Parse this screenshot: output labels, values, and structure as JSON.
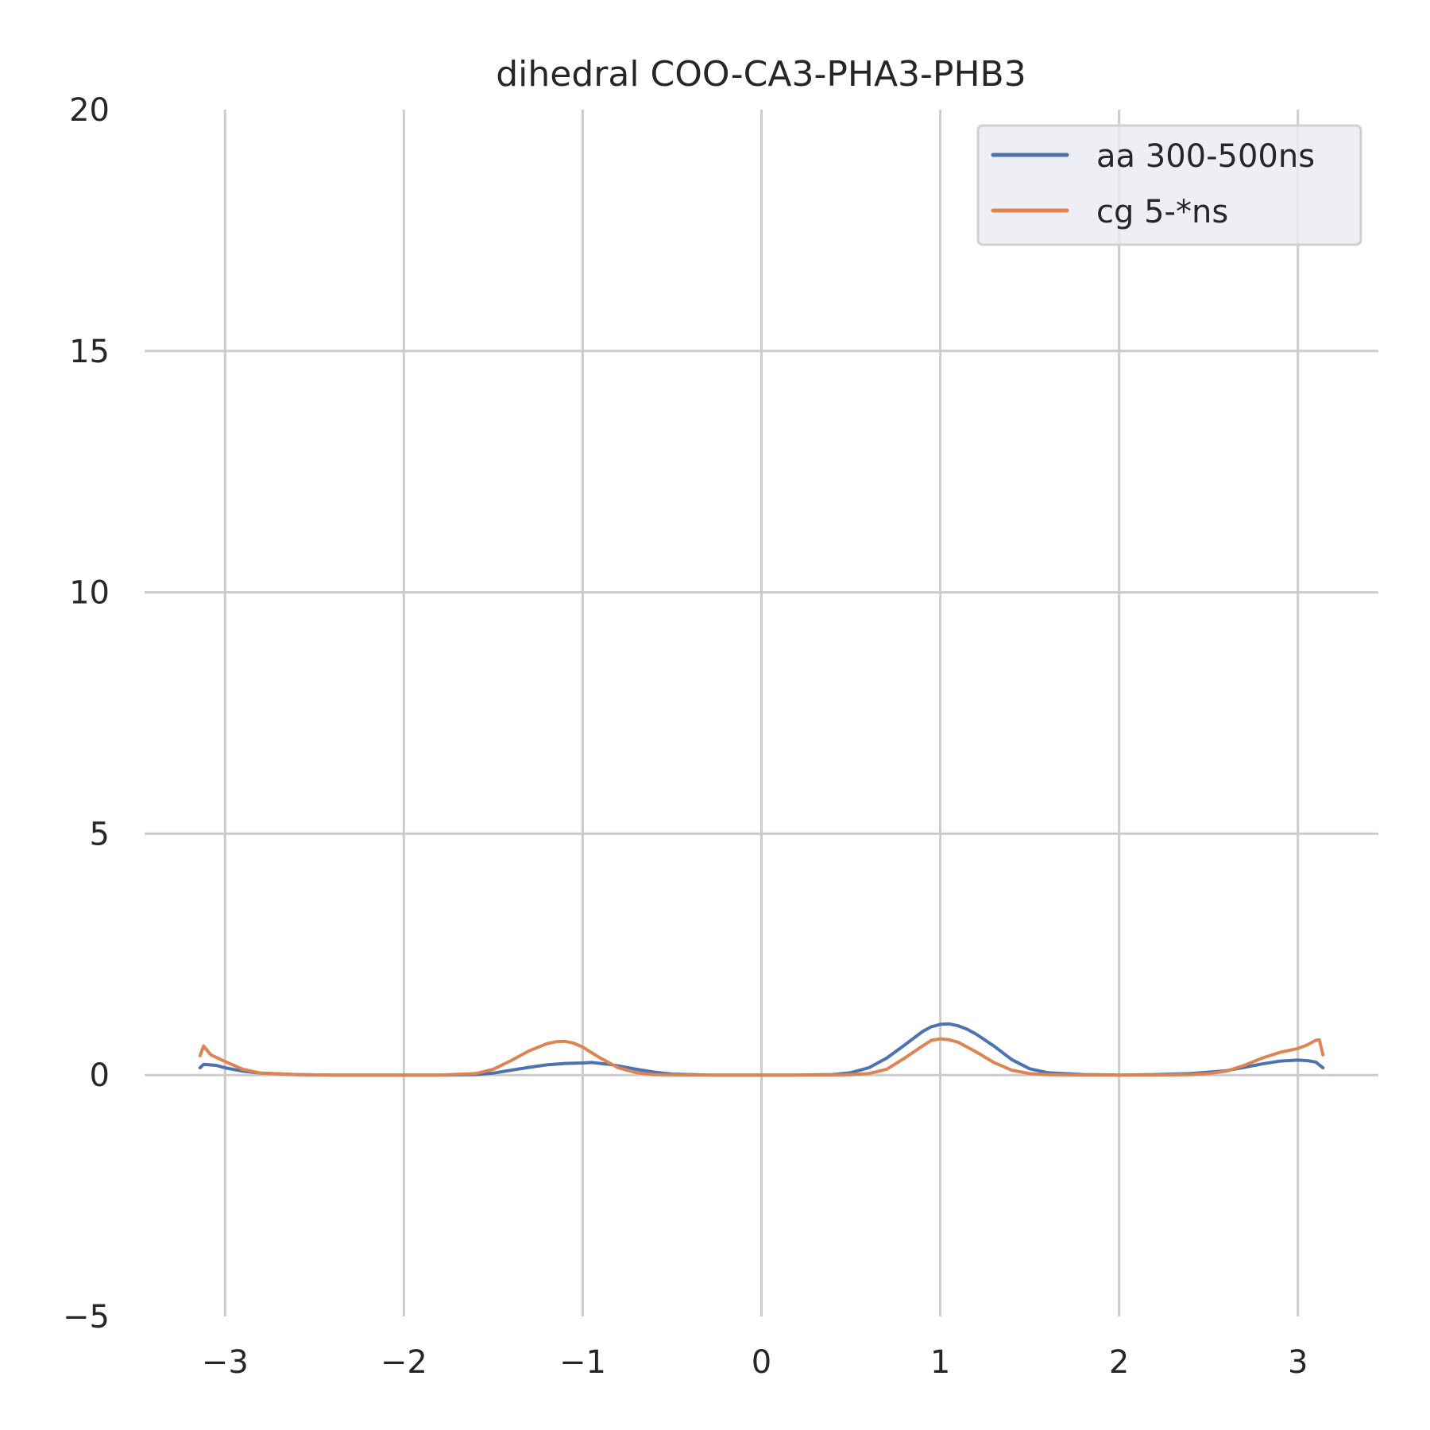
{
  "chart_data": {
    "type": "line",
    "title": "dihedral COO-CA3-PHA3-PHB3",
    "xlabel": "",
    "ylabel": "",
    "xlim": [
      -3.45,
      3.45
    ],
    "ylim": [
      -5,
      20
    ],
    "xticks": [
      -3,
      -2,
      -1,
      0,
      1,
      2,
      3
    ],
    "xtick_labels": [
      "−3",
      "−2",
      "−1",
      "0",
      "1",
      "2",
      "3"
    ],
    "yticks": [
      -5,
      0,
      5,
      10,
      15,
      20
    ],
    "ytick_labels": [
      "−5",
      "0",
      "5",
      "10",
      "15",
      "20"
    ],
    "grid": true,
    "legend_position": "top-right",
    "series": [
      {
        "name": "aa 300-500ns",
        "color": "#4c72b0",
        "x": [
          -3.14,
          -3.12,
          -3.05,
          -3.0,
          -2.9,
          -2.8,
          -2.6,
          -2.4,
          -2.2,
          -2.0,
          -1.8,
          -1.6,
          -1.5,
          -1.4,
          -1.3,
          -1.2,
          -1.1,
          -1.0,
          -0.95,
          -0.9,
          -0.85,
          -0.8,
          -0.7,
          -0.6,
          -0.5,
          -0.4,
          -0.3,
          -0.2,
          0.0,
          0.2,
          0.4,
          0.5,
          0.6,
          0.7,
          0.8,
          0.9,
          0.95,
          1.0,
          1.05,
          1.1,
          1.15,
          1.2,
          1.3,
          1.4,
          1.5,
          1.6,
          1.8,
          2.0,
          2.2,
          2.4,
          2.6,
          2.7,
          2.8,
          2.9,
          3.0,
          3.05,
          3.1,
          3.14
        ],
        "y": [
          0.15,
          0.22,
          0.2,
          0.15,
          0.08,
          0.04,
          0.01,
          0.0,
          0.0,
          0.0,
          0.0,
          0.01,
          0.04,
          0.1,
          0.16,
          0.21,
          0.24,
          0.25,
          0.26,
          0.24,
          0.22,
          0.19,
          0.12,
          0.06,
          0.02,
          0.01,
          0.0,
          0.0,
          0.0,
          0.0,
          0.01,
          0.05,
          0.15,
          0.35,
          0.62,
          0.9,
          1.0,
          1.05,
          1.06,
          1.02,
          0.95,
          0.85,
          0.6,
          0.32,
          0.13,
          0.05,
          0.01,
          0.0,
          0.01,
          0.03,
          0.09,
          0.16,
          0.23,
          0.29,
          0.31,
          0.3,
          0.27,
          0.15
        ]
      },
      {
        "name": "cg 5-*ns",
        "color": "#dd8452",
        "x": [
          -3.14,
          -3.12,
          -3.08,
          -3.0,
          -2.9,
          -2.8,
          -2.6,
          -2.4,
          -2.2,
          -2.0,
          -1.8,
          -1.6,
          -1.5,
          -1.4,
          -1.3,
          -1.2,
          -1.15,
          -1.1,
          -1.05,
          -1.0,
          -0.9,
          -0.8,
          -0.7,
          -0.6,
          -0.4,
          -0.2,
          0.0,
          0.2,
          0.4,
          0.5,
          0.6,
          0.7,
          0.8,
          0.9,
          0.95,
          1.0,
          1.05,
          1.1,
          1.2,
          1.3,
          1.4,
          1.5,
          1.6,
          1.8,
          2.0,
          2.2,
          2.4,
          2.5,
          2.6,
          2.7,
          2.8,
          2.9,
          3.0,
          3.05,
          3.1,
          3.12,
          3.14
        ],
        "y": [
          0.4,
          0.6,
          0.42,
          0.28,
          0.12,
          0.04,
          0.01,
          0.0,
          0.0,
          0.0,
          0.0,
          0.03,
          0.12,
          0.3,
          0.5,
          0.65,
          0.69,
          0.7,
          0.66,
          0.58,
          0.35,
          0.15,
          0.05,
          0.01,
          0.0,
          0.0,
          0.0,
          0.0,
          0.0,
          0.01,
          0.03,
          0.12,
          0.35,
          0.6,
          0.72,
          0.75,
          0.73,
          0.68,
          0.48,
          0.26,
          0.1,
          0.03,
          0.01,
          0.0,
          0.0,
          0.0,
          0.01,
          0.03,
          0.08,
          0.2,
          0.35,
          0.47,
          0.55,
          0.62,
          0.72,
          0.73,
          0.42
        ]
      }
    ]
  }
}
